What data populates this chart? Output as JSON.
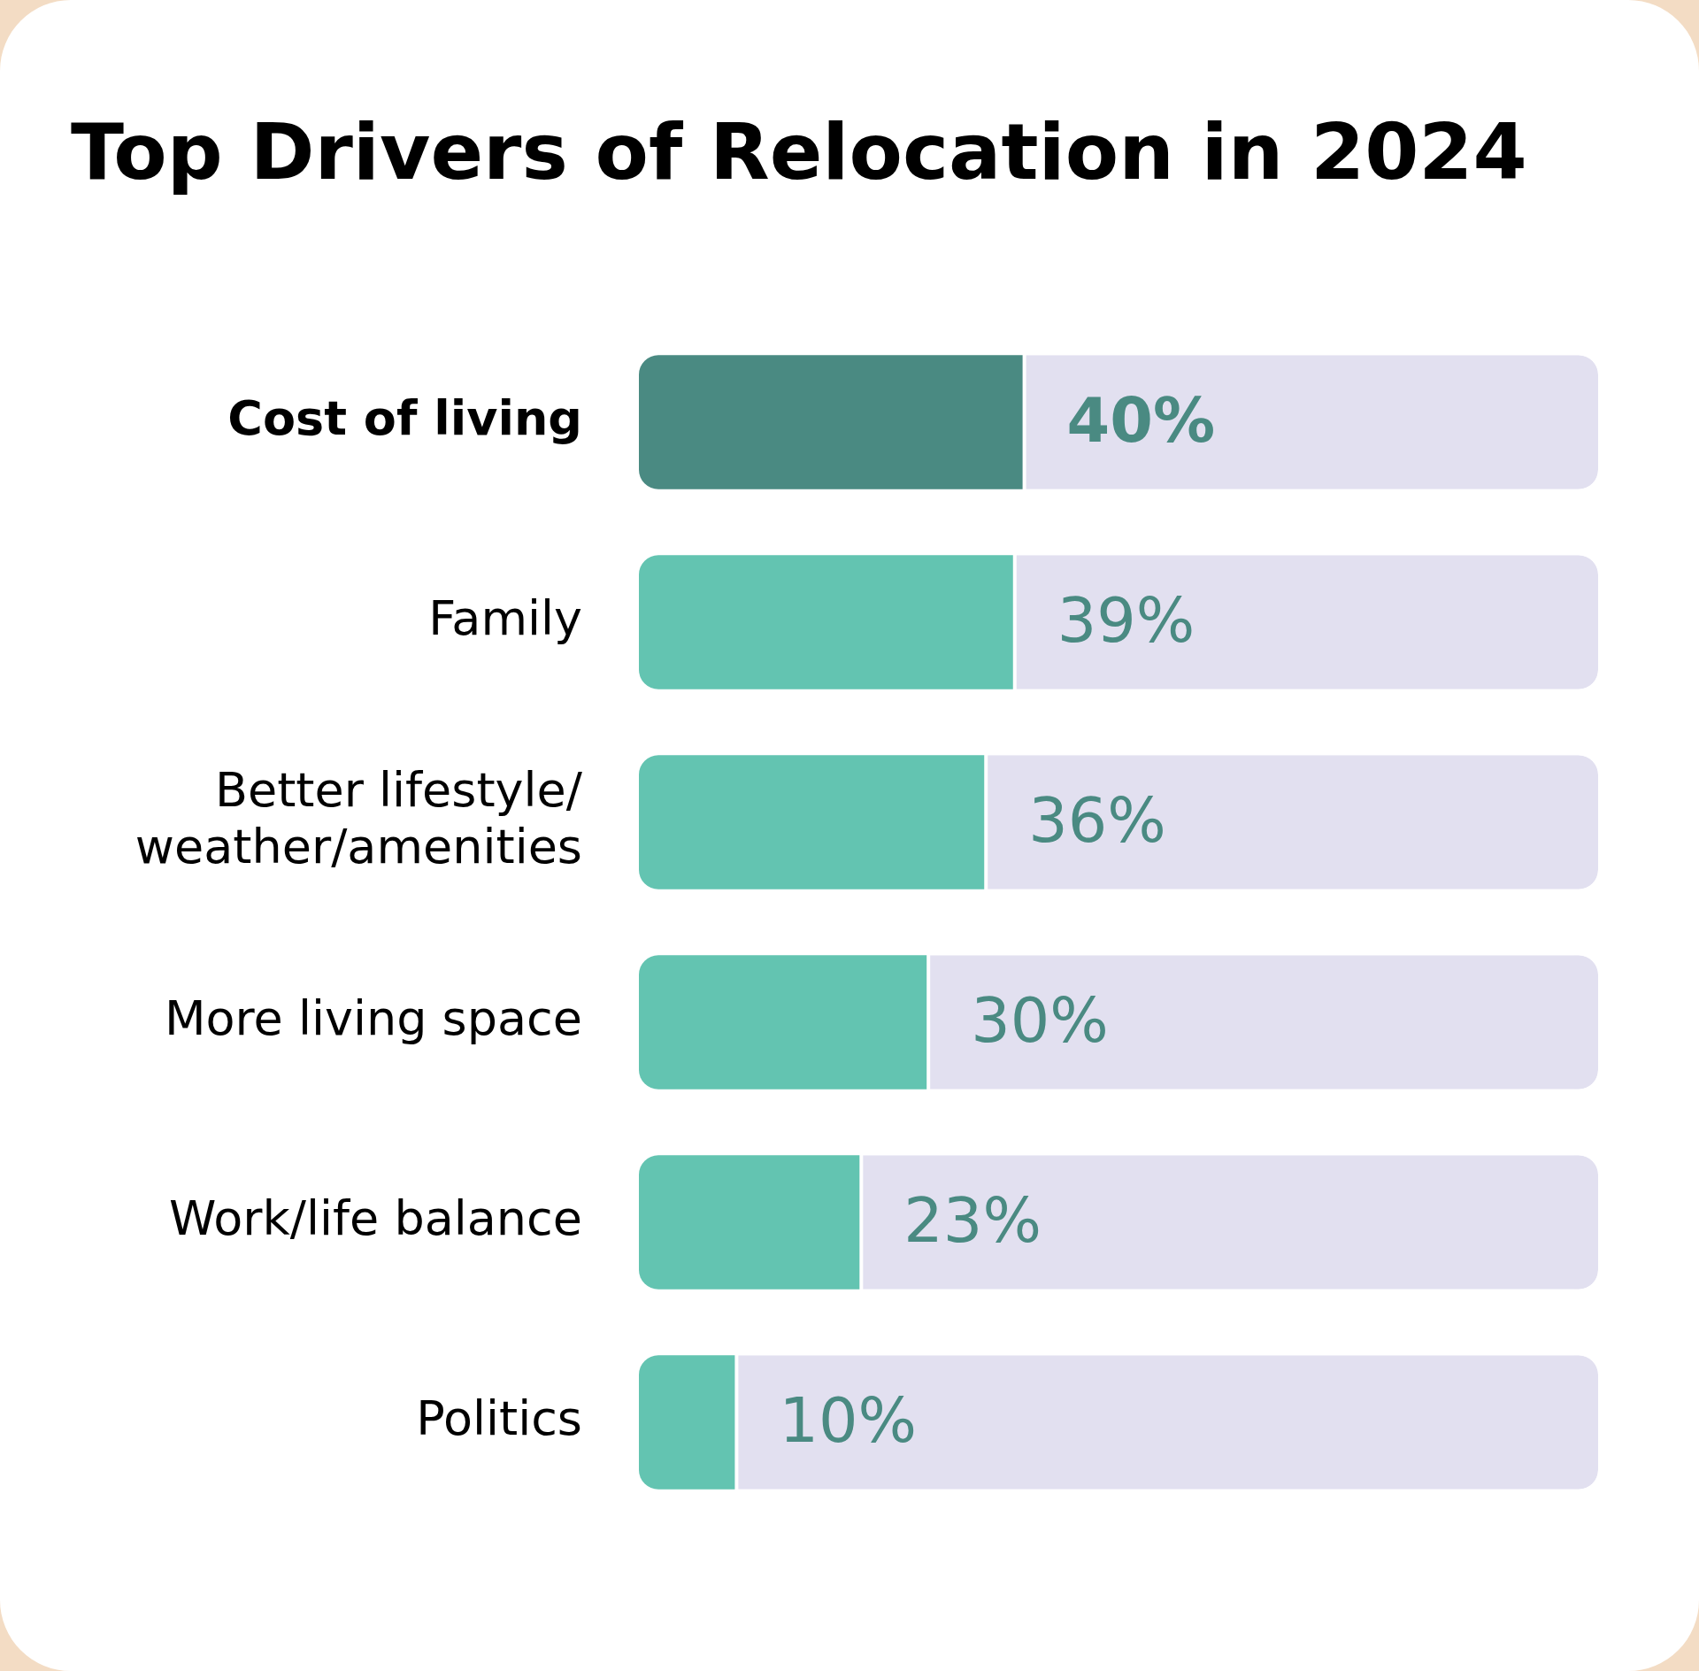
{
  "chart_data": {
    "type": "bar",
    "orientation": "horizontal",
    "stacked": true,
    "title": "Top Drivers of Relocation in 2024",
    "categories": [
      "Cost of living",
      "Family",
      "Better lifestyle/ weather/amenities",
      "More living space",
      "Work/life balance",
      "Politics"
    ],
    "series": [
      {
        "colors": [
          "#4a8a82",
          "#63c4b1",
          "#63c4b1",
          "#63c4b1",
          "#63c4b1",
          "#63c4b1"
        ],
        "values": [
          40,
          39,
          36,
          30,
          23,
          10
        ],
        "value_labels": [
          "40%",
          "39%",
          "36%",
          "30%",
          "23%",
          "10%"
        ]
      },
      {
        "color": "#e2e0f0",
        "values": [
          60,
          61,
          64,
          70,
          77,
          90
        ]
      }
    ],
    "xlim": [
      0,
      100
    ],
    "tick_labels": "y",
    "grid": false,
    "legend": false
  }
}
